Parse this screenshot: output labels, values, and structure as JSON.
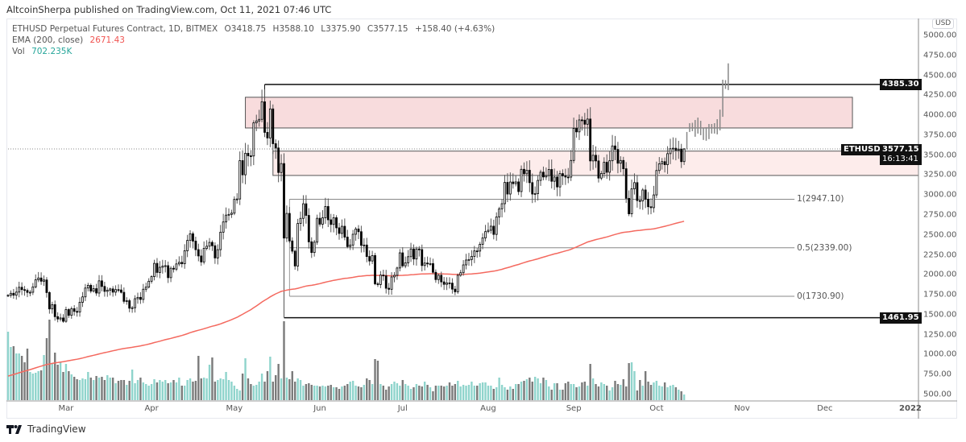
{
  "header": {
    "publisher": "AltcoinSherpa published on TradingView.com, Oct 11, 2021 07:46 UTC"
  },
  "legend": {
    "symbol": "ETHUSD Perpetual Futures Contract, 1D, BITMEX",
    "open": "O3418.75",
    "high": "H3588.10",
    "low": "L3375.90",
    "close": "C3577.15",
    "change": "+158.40 (+4.63%)",
    "ema_label": "EMA (200, close)",
    "ema_value": "2671.43",
    "vol_label": "Vol",
    "vol_value": "702.235K"
  },
  "axis": {
    "currency": "USD",
    "badge_resistance": "4385.30",
    "badge_support": "1461.95",
    "badge_symbol": "ETHUSD",
    "badge_price": "3577.15",
    "badge_countdown": "16:13:41"
  },
  "fib": {
    "level_1": "1(2947.10)",
    "level_05": "0.5(2339.00)",
    "level_0": "0(1730.90)"
  },
  "footer": {
    "brand": "TradingView"
  },
  "colors": {
    "up_volume": "#8fd4cc",
    "down_volume": "#7a7a7a",
    "ema": "#f4695f",
    "zone_strong": "#f8dcdd",
    "zone_light": "#fdeceb"
  },
  "chart_data": {
    "type": "candlestick",
    "title": "ETHUSD Perpetual Futures Contract, 1D, BITMEX",
    "start_date": "2021-02-08",
    "ylim": [
      500,
      5000
    ],
    "price_ticks": [
      "5000.00",
      "4750.00",
      "4500.00",
      "4250.00",
      "4000.00",
      "3750.00",
      "3500.00",
      "3250.00",
      "3000.00",
      "2750.00",
      "2500.00",
      "2250.00",
      "2000.00",
      "1750.00",
      "1500.00",
      "1250.00",
      "1000.00",
      "750.00",
      "500.00"
    ],
    "time_ticks": [
      {
        "date": "2021-03-01",
        "label": "Mar"
      },
      {
        "date": "2021-04-01",
        "label": "Apr"
      },
      {
        "date": "2021-05-01",
        "label": "May"
      },
      {
        "date": "2021-06-01",
        "label": "Jun"
      },
      {
        "date": "2021-07-01",
        "label": "Jul"
      },
      {
        "date": "2021-08-01",
        "label": "Aug"
      },
      {
        "date": "2021-09-01",
        "label": "Sep"
      },
      {
        "date": "2021-10-01",
        "label": "Oct"
      },
      {
        "date": "2021-11-01",
        "label": "Nov"
      },
      {
        "date": "2021-12-01",
        "label": "Dec"
      },
      {
        "date": "2022-01-01",
        "label": "2022"
      }
    ],
    "first_open": 1735,
    "closes": [
      1743,
      1768,
      1744,
      1783,
      1843,
      1814,
      1804,
      1779,
      1781,
      1848,
      1937,
      1960,
      1919,
      1935,
      1777,
      1572,
      1626,
      1475,
      1446,
      1459,
      1417,
      1564,
      1492,
      1575,
      1541,
      1533,
      1655,
      1723,
      1834,
      1868,
      1795,
      1826,
      1771,
      1924,
      1854,
      1792,
      1806,
      1823,
      1782,
      1814,
      1810,
      1780,
      1667,
      1675,
      1581,
      1587,
      1700,
      1717,
      1691,
      1819,
      1846,
      1919,
      1977,
      2143,
      2029,
      2094,
      2108,
      2114,
      1964,
      2082,
      2071,
      2136,
      2156,
      2138,
      2301,
      2431,
      2514,
      2422,
      2315,
      2236,
      2161,
      2331,
      2358,
      2406,
      2364,
      2211,
      2315,
      2534,
      2662,
      2748,
      2757,
      2772,
      2945,
      2950,
      3431,
      3253,
      3523,
      3491,
      3489,
      3904,
      3928,
      3948,
      4168,
      3785,
      3715,
      4079,
      3643,
      3589,
      3282,
      3394,
      2460,
      2769,
      2424,
      2296,
      2110,
      2643,
      2707,
      2890,
      2744,
      2413,
      2279,
      2409,
      2708,
      2634,
      2714,
      2856,
      2689,
      2631,
      2715,
      2589,
      2518,
      2608,
      2472,
      2353,
      2373,
      2508,
      2574,
      2540,
      2369,
      2373,
      2229,
      2173,
      2241,
      1887,
      1878,
      1996,
      1987,
      1831,
      1818,
      1973,
      1993,
      2085,
      2275,
      2112,
      2150,
      2227,
      2323,
      2198,
      2323,
      2316,
      2116,
      2147,
      2139,
      2140,
      2031,
      1940,
      1994,
      1911,
      1880,
      1898,
      1895,
      1820,
      1787,
      1994,
      2026,
      2124,
      2185,
      2191,
      2231,
      2299,
      2297,
      2382,
      2462,
      2541,
      2558,
      2609,
      2506,
      2725,
      2827,
      2891,
      3158,
      3012,
      3163,
      3142,
      3164,
      3043,
      3322,
      3266,
      3310,
      3155,
      3012,
      3018,
      3183,
      3286,
      3226,
      3243,
      3320,
      3172,
      3225,
      3101,
      3268,
      3240,
      3225,
      3224,
      3433,
      3834,
      3791,
      3941,
      3938,
      3887,
      3952,
      3427,
      3498,
      3427,
      3212,
      3270,
      3410,
      3285,
      3429,
      3615,
      3571,
      3398,
      3433,
      3329,
      2958,
      2764,
      3077,
      3155,
      2930,
      2925,
      3063,
      2947,
      2853,
      2841,
      3001,
      3307,
      3391,
      3418,
      3380,
      3518,
      3580,
      3586,
      3561,
      3575,
      3418,
      3577.15
    ],
    "last_bar": {
      "open": 3418.75,
      "high": 3588.1,
      "low": 3375.9,
      "close": 3577.15
    },
    "volumes_k": [
      8500,
      6600,
      6700,
      5800,
      5800,
      5500,
      4700,
      6400,
      3500,
      3300,
      3400,
      3600,
      3700,
      5600,
      7700,
      10000,
      4500,
      5900,
      4400,
      4700,
      3500,
      4500,
      3600,
      3200,
      2900,
      2600,
      2500,
      2700,
      2600,
      3500,
      2800,
      2500,
      3000,
      2800,
      2900,
      2500,
      3100,
      2800,
      2800,
      2100,
      2400,
      2500,
      2500,
      1900,
      2400,
      3800,
      2100,
      2500,
      2800,
      2200,
      2000,
      1800,
      2000,
      2600,
      2200,
      2500,
      2300,
      2500,
      2100,
      2200,
      2500,
      2200,
      2800,
      1800,
      1800,
      2500,
      2700,
      2300,
      2400,
      5500,
      2700,
      2800,
      2700,
      4400,
      5300,
      2300,
      2500,
      2700,
      2600,
      3500,
      2500,
      2300,
      1800,
      1400,
      1200,
      3300,
      5200,
      2700,
      2000,
      1800,
      1900,
      2300,
      3300,
      2300,
      3600,
      5400,
      2300,
      3100,
      4500,
      2700,
      9800,
      2800,
      2600,
      3600,
      2300,
      2700,
      2500,
      1800,
      2000,
      2100,
      1900,
      1800,
      1800,
      1700,
      1800,
      1700,
      1800,
      1900,
      1600,
      1600,
      1400,
      1700,
      1800,
      2000,
      2300,
      2400,
      1800,
      1700,
      1600,
      1900,
      2700,
      2500,
      2000,
      5100,
      4900,
      2000,
      1800,
      1300,
      1700,
      2000,
      2300,
      2100,
      1800,
      2500,
      2000,
      1800,
      1400,
      1600,
      2000,
      1800,
      1700,
      2300,
      1900,
      1600,
      1100,
      1800,
      1800,
      1800,
      1700,
      1800,
      2200,
      1800,
      2000,
      2400,
      1700,
      1900,
      1800,
      1900,
      2300,
      1800,
      1800,
      2100,
      2200,
      2200,
      1800,
      1800,
      1400,
      1600,
      2800,
      1900,
      1600,
      1300,
      1700,
      1400,
      2000,
      2000,
      2300,
      2400,
      2600,
      2800,
      2300,
      2900,
      2700,
      2100,
      2800,
      2500,
      1700,
      1300,
      2100,
      2100,
      1300,
      1300,
      2100,
      2300,
      2000,
      2000,
      1600,
      1700,
      2200,
      2300,
      1800,
      4500,
      2700,
      2000,
      1700,
      2200,
      2000,
      1800,
      1200,
      1600,
      2400,
      2000,
      1900,
      2600,
      1700,
      4600,
      4700,
      3600,
      1200,
      2500,
      1800,
      3600,
      2300,
      1900,
      2200,
      2400,
      1800,
      1700,
      2200,
      1600,
      1800,
      1900,
      1600,
      1300,
      1100,
      702.235
    ],
    "ema": {
      "period": 200,
      "seed": 720,
      "last": 2671.43
    },
    "projection_bars": [
      [
        3790,
        3570
      ],
      [
        3900,
        3790
      ],
      [
        3905,
        3800
      ],
      [
        3940,
        3730
      ],
      [
        3970,
        3770
      ],
      [
        3930,
        3750
      ],
      [
        3840,
        3690
      ],
      [
        3850,
        3680
      ],
      [
        3890,
        3700
      ],
      [
        3890,
        3770
      ],
      [
        3900,
        3770
      ],
      [
        3950,
        3760
      ],
      [
        4070,
        3810
      ],
      [
        4445,
        3980
      ],
      [
        4440,
        4330
      ],
      [
        4650,
        4315
      ]
    ],
    "drawings": {
      "supply_zone": {
        "top": 4225,
        "bottom": 3840,
        "start": "2021-05-05",
        "end": "2021-12-11"
      },
      "demand_zone": {
        "top": 3550,
        "bottom": 3245,
        "start": "2021-05-15"
      },
      "resistance_line": {
        "price": 4385.3,
        "start": "2021-05-12"
      },
      "support_line": {
        "price": 1461.95,
        "start": "2021-05-19",
        "vertical_top": 3050
      },
      "fib": {
        "start": "2021-05-21",
        "end": "2021-11-20",
        "levels": [
          2947.1,
          2339.0,
          1730.9
        ]
      },
      "last_price": 3577.15
    }
  }
}
